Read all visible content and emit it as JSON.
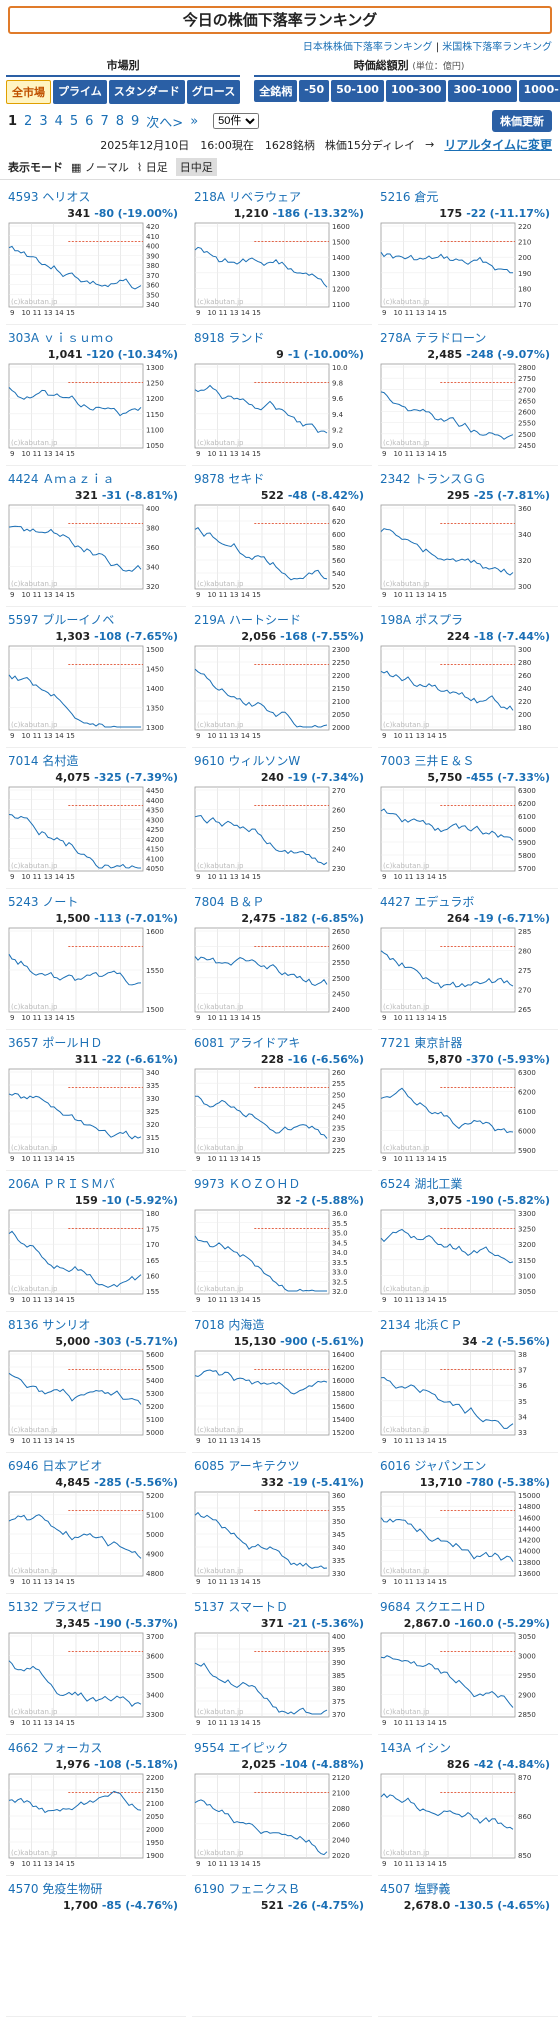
{
  "title": "今日の株価下落率ランキング",
  "sublinks": {
    "jp": "日本株株価下落率ランキング",
    "sep": "|",
    "us": "米国株下落率ランキング"
  },
  "market": {
    "label": "市場別",
    "buttons": [
      "全市場",
      "プライム",
      "スタンダード",
      "グロース"
    ]
  },
  "cap": {
    "label": "時価総額別",
    "unit": "(単位：億円)",
    "buttons": [
      "全銘柄",
      "-50",
      "50-100",
      "100-300",
      "300-1000",
      "1000-"
    ]
  },
  "pager": {
    "pages": [
      "1",
      "2",
      "3",
      "4",
      "5",
      "6",
      "7",
      "8",
      "9"
    ],
    "next": "次へ>",
    "last": "»",
    "per_page": "50件"
  },
  "refresh": "株価更新",
  "info": {
    "datetime": "2025年12月10日　16:00現在　1628銘柄",
    "delay": "株価15分ディレイ",
    "arrow": "→",
    "realtime": "リアルタイムに変更"
  },
  "mode": {
    "label": "表示モード",
    "normal": "ノーマル",
    "daily": "日足",
    "intraday": "日中足"
  },
  "watermark": "(c)kabutan.jp",
  "colors": {
    "line": "#1a6fb5",
    "ref": "#e05030"
  },
  "stocks": [
    {
      "code": "4593",
      "name": "ヘリオス",
      "price": "341",
      "change": "-80",
      "pct": "(-19.00%)",
      "ticks": [
        "420",
        "410",
        "400",
        "390",
        "380",
        "370",
        "360",
        "350",
        "340"
      ]
    },
    {
      "code": "218A",
      "name": "リベラウェア",
      "price": "1,210",
      "change": "-186",
      "pct": "(-13.32%)",
      "ticks": [
        "1600",
        "1500",
        "1400",
        "1300",
        "1200",
        "1100"
      ]
    },
    {
      "code": "5216",
      "name": "倉元",
      "price": "175",
      "change": "-22",
      "pct": "(-11.17%)",
      "ticks": [
        "220",
        "210",
        "200",
        "190",
        "180",
        "170"
      ]
    },
    {
      "code": "303A",
      "name": "ｖｉｓｕｍｏ",
      "price": "1,041",
      "change": "-120",
      "pct": "(-10.34%)",
      "ticks": [
        "1300",
        "1250",
        "1200",
        "1150",
        "1100",
        "1050"
      ]
    },
    {
      "code": "8918",
      "name": "ランド",
      "price": "9",
      "change": "-1",
      "pct": "(-10.00%)",
      "ticks": [
        "10.0",
        "9.8",
        "9.6",
        "9.4",
        "9.2",
        "9.0"
      ]
    },
    {
      "code": "278A",
      "name": "テラドローン",
      "price": "2,485",
      "change": "-248",
      "pct": "(-9.07%)",
      "ticks": [
        "2800",
        "2750",
        "2700",
        "2650",
        "2600",
        "2550",
        "2500",
        "2450"
      ]
    },
    {
      "code": "4424",
      "name": "Ａｍａｚｉａ",
      "price": "321",
      "change": "-31",
      "pct": "(-8.81%)",
      "ticks": [
        "400",
        "380",
        "360",
        "340",
        "320"
      ]
    },
    {
      "code": "9878",
      "name": "セキド",
      "price": "522",
      "change": "-48",
      "pct": "(-8.42%)",
      "ticks": [
        "640",
        "620",
        "600",
        "580",
        "560",
        "540",
        "520"
      ]
    },
    {
      "code": "2342",
      "name": "トランスＧＧ",
      "price": "295",
      "change": "-25",
      "pct": "(-7.81%)",
      "ticks": [
        "360",
        "340",
        "320",
        "300"
      ]
    },
    {
      "code": "5597",
      "name": "ブルーイノベ",
      "price": "1,303",
      "change": "-108",
      "pct": "(-7.65%)",
      "ticks": [
        "1500",
        "1450",
        "1400",
        "1350",
        "1300"
      ]
    },
    {
      "code": "219A",
      "name": "ハートシード",
      "price": "2,056",
      "change": "-168",
      "pct": "(-7.55%)",
      "ticks": [
        "2300",
        "2250",
        "2200",
        "2150",
        "2100",
        "2050",
        "2000"
      ]
    },
    {
      "code": "198A",
      "name": "ポスプラ",
      "price": "224",
      "change": "-18",
      "pct": "(-7.44%)",
      "ticks": [
        "300",
        "280",
        "260",
        "240",
        "220",
        "200",
        "180"
      ]
    },
    {
      "code": "7014",
      "name": "名村造",
      "price": "4,075",
      "change": "-325",
      "pct": "(-7.39%)",
      "ticks": [
        "4450",
        "4400",
        "4350",
        "4300",
        "4250",
        "4200",
        "4150",
        "4100",
        "4050"
      ]
    },
    {
      "code": "9610",
      "name": "ウィルソンW",
      "price": "240",
      "change": "-19",
      "pct": "(-7.34%)",
      "ticks": [
        "270",
        "260",
        "250",
        "240",
        "230"
      ]
    },
    {
      "code": "7003",
      "name": "三井Ｅ＆Ｓ",
      "price": "5,750",
      "change": "-455",
      "pct": "(-7.33%)",
      "ticks": [
        "6300",
        "6200",
        "6100",
        "6000",
        "5900",
        "5800",
        "5700"
      ]
    },
    {
      "code": "5243",
      "name": "ノート",
      "price": "1,500",
      "change": "-113",
      "pct": "(-7.01%)",
      "ticks": [
        "1600",
        "1550",
        "1500"
      ]
    },
    {
      "code": "7804",
      "name": "Ｂ＆Ｐ",
      "price": "2,475",
      "change": "-182",
      "pct": "(-6.85%)",
      "ticks": [
        "2650",
        "2600",
        "2550",
        "2500",
        "2450",
        "2400"
      ]
    },
    {
      "code": "4427",
      "name": "エデュラボ",
      "price": "264",
      "change": "-19",
      "pct": "(-6.71%)",
      "ticks": [
        "285",
        "280",
        "275",
        "270",
        "265"
      ]
    },
    {
      "code": "3657",
      "name": "ポールＨＤ",
      "price": "311",
      "change": "-22",
      "pct": "(-6.61%)",
      "ticks": [
        "340",
        "335",
        "330",
        "325",
        "320",
        "315",
        "310"
      ]
    },
    {
      "code": "6081",
      "name": "アライドアキ",
      "price": "228",
      "change": "-16",
      "pct": "(-6.56%)",
      "ticks": [
        "260",
        "255",
        "250",
        "245",
        "240",
        "235",
        "230",
        "225"
      ]
    },
    {
      "code": "7721",
      "name": "東京計器",
      "price": "5,870",
      "change": "-370",
      "pct": "(-5.93%)",
      "ticks": [
        "6300",
        "6200",
        "6100",
        "6000",
        "5900"
      ]
    },
    {
      "code": "206A",
      "name": "ＰＲＩＳＭバ",
      "price": "159",
      "change": "-10",
      "pct": "(-5.92%)",
      "ticks": [
        "180",
        "175",
        "170",
        "165",
        "160",
        "155"
      ]
    },
    {
      "code": "9973",
      "name": "ＫＯＺＯＨＤ",
      "price": "32",
      "change": "-2",
      "pct": "(-5.88%)",
      "ticks": [
        "36.0",
        "35.5",
        "35.0",
        "34.5",
        "34.0",
        "33.5",
        "33.0",
        "32.5",
        "32.0"
      ]
    },
    {
      "code": "6524",
      "name": "湖北工業",
      "price": "3,075",
      "change": "-190",
      "pct": "(-5.82%)",
      "ticks": [
        "3300",
        "3250",
        "3200",
        "3150",
        "3100",
        "3050"
      ]
    },
    {
      "code": "8136",
      "name": "サンリオ",
      "price": "5,000",
      "change": "-303",
      "pct": "(-5.71%)",
      "ticks": [
        "5600",
        "5500",
        "5400",
        "5300",
        "5200",
        "5100",
        "5000"
      ]
    },
    {
      "code": "7018",
      "name": "内海造",
      "price": "15,130",
      "change": "-900",
      "pct": "(-5.61%)",
      "ticks": [
        "16400",
        "16200",
        "16000",
        "15800",
        "15600",
        "15400",
        "15200"
      ]
    },
    {
      "code": "2134",
      "name": "北浜ＣＰ",
      "price": "34",
      "change": "-2",
      "pct": "(-5.56%)",
      "ticks": [
        "38",
        "37",
        "36",
        "35",
        "34",
        "33"
      ]
    },
    {
      "code": "6946",
      "name": "日本アビオ",
      "price": "4,845",
      "change": "-285",
      "pct": "(-5.56%)",
      "ticks": [
        "5200",
        "5100",
        "5000",
        "4900",
        "4800"
      ]
    },
    {
      "code": "6085",
      "name": "アーキテクツ",
      "price": "332",
      "change": "-19",
      "pct": "(-5.41%)",
      "ticks": [
        "360",
        "355",
        "350",
        "345",
        "340",
        "335",
        "330"
      ]
    },
    {
      "code": "6016",
      "name": "ジャパンエン",
      "price": "13,710",
      "change": "-780",
      "pct": "(-5.38%)",
      "ticks": [
        "15000",
        "14800",
        "14600",
        "14400",
        "14200",
        "14000",
        "13800",
        "13600"
      ]
    },
    {
      "code": "5132",
      "name": "プラスゼロ",
      "price": "3,345",
      "change": "-190",
      "pct": "(-5.37%)",
      "ticks": [
        "3700",
        "3600",
        "3500",
        "3400",
        "3300"
      ]
    },
    {
      "code": "5137",
      "name": "スマートＤ",
      "price": "371",
      "change": "-21",
      "pct": "(-5.36%)",
      "ticks": [
        "400",
        "395",
        "390",
        "385",
        "380",
        "375",
        "370"
      ]
    },
    {
      "code": "9684",
      "name": "スクエニＨＤ",
      "price": "2,867.0",
      "change": "-160.0",
      "pct": "(-5.29%)",
      "ticks": [
        "3050",
        "3000",
        "2950",
        "2900",
        "2850"
      ]
    },
    {
      "code": "4662",
      "name": "フォーカス",
      "price": "1,976",
      "change": "-108",
      "pct": "(-5.18%)",
      "ticks": [
        "2200",
        "2150",
        "2100",
        "2050",
        "2000",
        "1950",
        "1900"
      ]
    },
    {
      "code": "9554",
      "name": "エイピック",
      "price": "2,025",
      "change": "-104",
      "pct": "(-4.88%)",
      "ticks": [
        "2120",
        "2100",
        "2080",
        "2060",
        "2040",
        "2020"
      ]
    },
    {
      "code": "143A",
      "name": "イシン",
      "price": "826",
      "change": "-42",
      "pct": "(-4.84%)",
      "ticks": [
        "870",
        "860",
        "850"
      ]
    },
    {
      "code": "4570",
      "name": "免疫生物研",
      "price": "1,700",
      "change": "-85",
      "pct": "(-4.76%)",
      "ticks": []
    },
    {
      "code": "6190",
      "name": "フェニクスＢ",
      "price": "521",
      "change": "-26",
      "pct": "(-4.75%)",
      "ticks": []
    },
    {
      "code": "4507",
      "name": "塩野義",
      "price": "2,678.0",
      "change": "-130.5",
      "pct": "(-4.65%)",
      "ticks": []
    }
  ],
  "xaxis": "9　10 11 13 14 15"
}
